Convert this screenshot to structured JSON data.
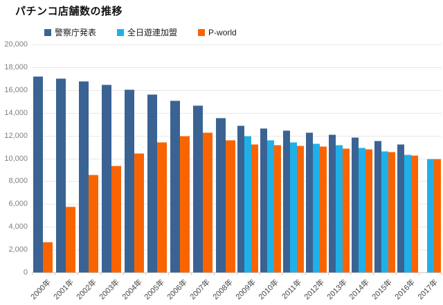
{
  "title": "パチンコ店舗数の推移",
  "legend": [
    {
      "label": "警察庁発表",
      "color": "#3A6394"
    },
    {
      "label": "全日遊連加盟",
      "color": "#1FB0E8"
    },
    {
      "label": "P-world",
      "color": "#FA6400"
    }
  ],
  "chart_data": {
    "type": "bar",
    "title": "パチンコ店舗数の推移",
    "categories": [
      "2000年",
      "2001年",
      "2002年",
      "2003年",
      "2004年",
      "2005年",
      "2006年",
      "2007年",
      "2008年",
      "2009年",
      "2010年",
      "2011年",
      "2012年",
      "2013年",
      "2014年",
      "2015年",
      "2016年",
      "2017年"
    ],
    "series": [
      {
        "name": "警察庁発表",
        "color": "#3A6394",
        "values": [
          17200,
          17000,
          16800,
          16450,
          16050,
          15600,
          15100,
          14650,
          13550,
          12900,
          12650,
          12450,
          12250,
          12100,
          11850,
          11550,
          11250,
          null
        ]
      },
      {
        "name": "全日遊連加盟",
        "color": "#1FB0E8",
        "values": [
          null,
          null,
          null,
          null,
          null,
          null,
          null,
          null,
          null,
          11950,
          11600,
          11450,
          11300,
          11200,
          10950,
          10650,
          10350,
          9950
        ]
      },
      {
        "name": "P-world",
        "color": "#FA6400",
        "values": [
          2650,
          5800,
          8550,
          9350,
          10450,
          11400,
          12000,
          12250,
          11600,
          11250,
          11200,
          11100,
          11050,
          10900,
          10800,
          10550,
          10300,
          9950
        ]
      }
    ],
    "ylim": [
      0,
      20000
    ],
    "ytick_interval": 2000,
    "ytick_labels": [
      "20,000",
      "18,000",
      "16,000",
      "14,000",
      "12,000",
      "10,000",
      "8,000",
      "6,000",
      "4,000",
      "2,000",
      "0"
    ],
    "grid": true,
    "legend_position": "top"
  }
}
